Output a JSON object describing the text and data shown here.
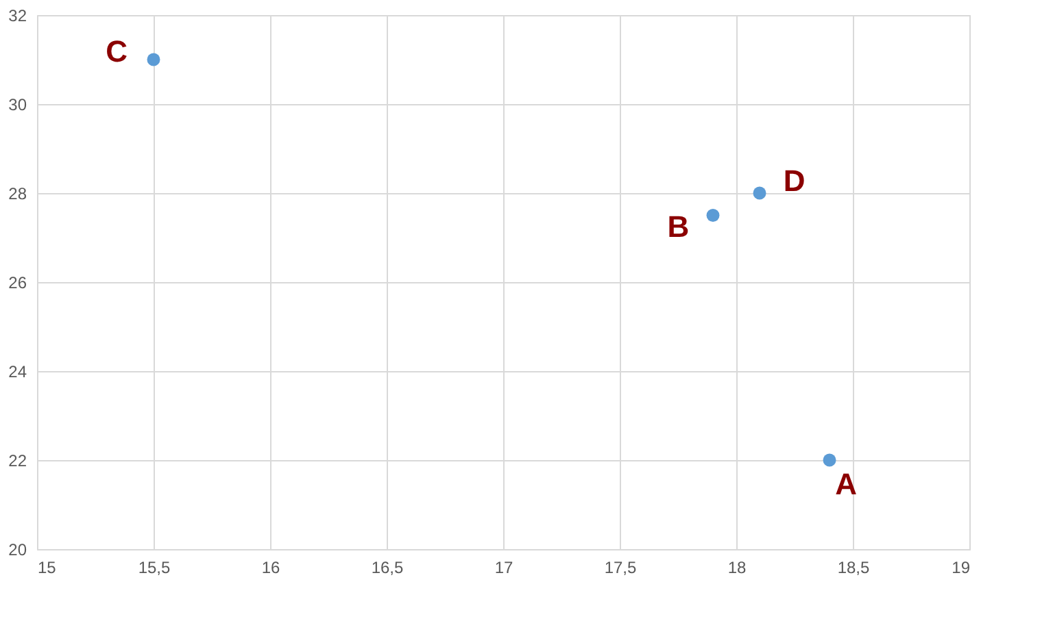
{
  "chart_data": {
    "type": "scatter",
    "x": [
      18.4,
      17.9,
      15.5,
      18.1
    ],
    "values": [
      22,
      27.5,
      31,
      28
    ],
    "color": "#5b9bd5",
    "marker": "circle",
    "grid": true,
    "xlim": [
      15,
      19
    ],
    "xticks": [
      15,
      {
        "value": 15.5,
        "label": "15,5"
      },
      16,
      {
        "value": 16.5,
        "label": "16,5"
      },
      17,
      {
        "value": 17.5,
        "label": "17,5"
      },
      18,
      {
        "value": 18.5,
        "label": "18,5"
      },
      19
    ],
    "ylim": [
      20,
      32
    ],
    "yticks": [
      20,
      22,
      24,
      26,
      28,
      30,
      32
    ],
    "annotations": [
      {
        "text": "A",
        "x": 18.4,
        "y": 22
      },
      {
        "text": "B",
        "x": 17.9,
        "y": 27.5
      },
      {
        "text": "C",
        "x": 15.5,
        "y": 31
      },
      {
        "text": "D",
        "x": 18.1,
        "y": 28
      }
    ]
  }
}
